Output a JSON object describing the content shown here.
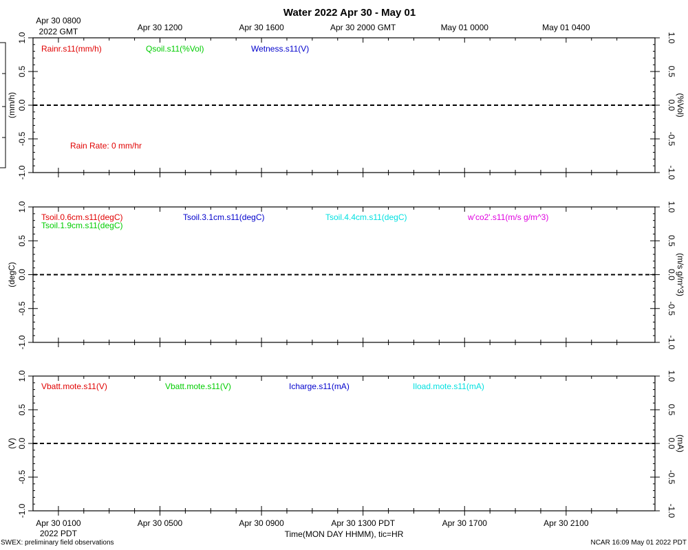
{
  "title": "Water 2022 Apr 30 - May 01",
  "top_axis": {
    "ticks": [
      {
        "hour": 0,
        "line1": "Apr 30 0800",
        "line2": "2022 GMT"
      },
      {
        "hour": 4,
        "line1": "Apr 30 1200"
      },
      {
        "hour": 8,
        "line1": "Apr 30 1600"
      },
      {
        "hour": 12,
        "line1": "Apr 30 2000 GMT"
      },
      {
        "hour": 16,
        "line1": "May 01 0000"
      },
      {
        "hour": 20,
        "line1": "May 01 0400"
      }
    ]
  },
  "bottom_axis": {
    "ticks": [
      {
        "hour": 0,
        "line1": "Apr 30 0100",
        "line2": "2022 PDT"
      },
      {
        "hour": 4,
        "line1": "Apr 30 0500"
      },
      {
        "hour": 8,
        "line1": "Apr 30 0900"
      },
      {
        "hour": 12,
        "line1": "Apr 30 1300 PDT"
      },
      {
        "hour": 16,
        "line1": "Apr 30 1700"
      },
      {
        "hour": 20,
        "line1": "Apr 30 2100"
      }
    ],
    "xlabel": "Time(MON DAY HHMM), tic=HR"
  },
  "footer": {
    "left": "SWEX: preliminary field observations",
    "right": "NCAR 16:09 May 01 2022 PDT"
  },
  "chart_data": [
    {
      "type": "line",
      "ylabel_left": "(mm/h)",
      "ylabel_right": "(%Vol)",
      "ylim": [
        -1,
        1
      ],
      "yticks": [
        "1.0",
        "0.5",
        "0.0",
        "-0.5",
        "-1.0"
      ],
      "series": [
        {
          "name": "Rainr.s11(mm/h)",
          "color": "#e00000",
          "values": []
        },
        {
          "name": "Qsoil.s11(%Vol)",
          "color": "#00cc00",
          "values": []
        },
        {
          "name": "Wetness.s11(V)",
          "color": "#0000cc",
          "values": []
        }
      ],
      "annotation": {
        "text": "Rain Rate: 0 mm/hr",
        "color": "#e00000"
      },
      "zero_line": true
    },
    {
      "type": "line",
      "ylabel_left": "(degC)",
      "ylabel_right": "(m/s g/m^3)",
      "ylim": [
        -1,
        1
      ],
      "yticks": [
        "1.0",
        "0.5",
        "0.0",
        "-0.5",
        "-1.0"
      ],
      "series": [
        {
          "name": "Tsoil.0.6cm.s11(degC)",
          "color": "#e00000",
          "values": []
        },
        {
          "name": "Tsoil.1.9cm.s11(degC)",
          "color": "#00cc00",
          "values": []
        },
        {
          "name": "Tsoil.3.1cm.s11(degC)",
          "color": "#0000cc",
          "values": []
        },
        {
          "name": "Tsoil.4.4cm.s11(degC)",
          "color": "#00e0e0",
          "values": []
        },
        {
          "name": "w'co2'.s11(m/s g/m^3)",
          "color": "#e000e0",
          "values": []
        }
      ],
      "zero_line": true
    },
    {
      "type": "line",
      "ylabel_left": "(V)",
      "ylabel_right": "(mA)",
      "ylim": [
        -1,
        1
      ],
      "yticks": [
        "1.0",
        "0.5",
        "0.0",
        "-0.5",
        "-1.0"
      ],
      "series": [
        {
          "name": "Vbatt.mote.s11(V)",
          "color": "#e00000",
          "values": []
        },
        {
          "name": "Vbatt.mote.s11(V)",
          "color": "#00cc00",
          "values": []
        },
        {
          "name": "Icharge.s11(mA)",
          "color": "#0000cc",
          "values": []
        },
        {
          "name": "Iload.mote.s11(mA)",
          "color": "#00e0e0",
          "values": []
        }
      ],
      "zero_line": true
    }
  ]
}
